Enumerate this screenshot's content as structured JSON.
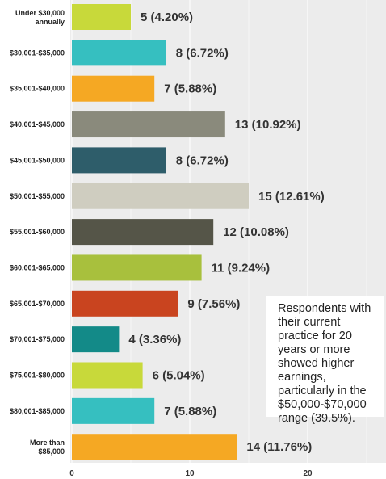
{
  "chart_data": {
    "type": "bar",
    "orientation": "horizontal",
    "categories": [
      "Under $30,000 annually",
      "$30,001-$35,000",
      "$35,001-$40,000",
      "$40,001-$45,000",
      "$45,001-$50,000",
      "$50,001-$55,000",
      "$55,001-$60,000",
      "$60,001-$65,000",
      "$65,001-$70,000",
      "$70,001-$75,000",
      "$75,001-$80,000",
      "$80,001-$85,000",
      "More than $85,000"
    ],
    "values": [
      5,
      8,
      7,
      13,
      8,
      15,
      12,
      11,
      9,
      4,
      6,
      7,
      14
    ],
    "data_labels": [
      "5 (4.20%)",
      "8 (6.72%)",
      "7 (5.88%)",
      "13 (10.92%)",
      "8 (6.72%)",
      "15 (12.61%)",
      "12 (10.08%)",
      "11 (9.24%)",
      "9 (7.56%)",
      "4 (3.36%)",
      "6 (5.04%)",
      "7 (5.88%)",
      "14 (11.76%)"
    ],
    "bar_colors": [
      "#c8d93a",
      "#36bfc0",
      "#f5a823",
      "#8a8a7c",
      "#2e5d6a",
      "#cfcdc0",
      "#555548",
      "#a8c03d",
      "#c9441f",
      "#138a88",
      "#c8d93a",
      "#36bfc0",
      "#f5a823"
    ],
    "xticks": [
      0,
      10,
      20
    ],
    "xlim": [
      0,
      26
    ],
    "grid": true,
    "annotation": "Respondents with their current practice for 20 years or more showed higher earnings, particularly in the $50,000-$70,000 range (39.5%)."
  }
}
